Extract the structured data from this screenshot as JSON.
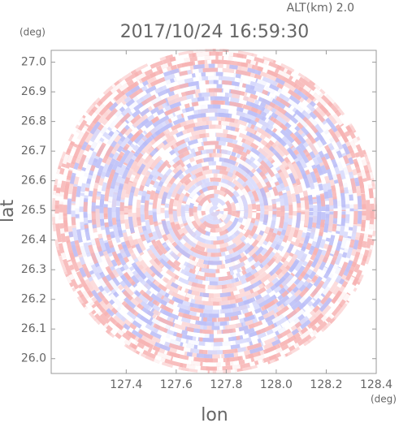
{
  "chart_data": {
    "type": "radar-field",
    "title": "2017/10/24 16:59:30",
    "subtitle": "ALT(km) 2.0",
    "y_unit": "(deg)",
    "x_unit": "(deg)",
    "xlabel": "lon",
    "ylabel": "lat",
    "xlim": [
      127.1,
      128.4
    ],
    "ylim": [
      25.95,
      27.04
    ],
    "xticks": [
      127.4,
      127.6,
      127.8,
      {
        "value": 128.0,
        "label": "128.0"
      },
      128.2,
      128.4
    ],
    "yticks": [
      {
        "value": 26.0,
        "label": "26.0"
      },
      26.1,
      26.2,
      26.3,
      26.4,
      26.5,
      26.6,
      26.7,
      26.8,
      26.9,
      {
        "value": 27.0,
        "label": "27.0"
      }
    ]
  }
}
